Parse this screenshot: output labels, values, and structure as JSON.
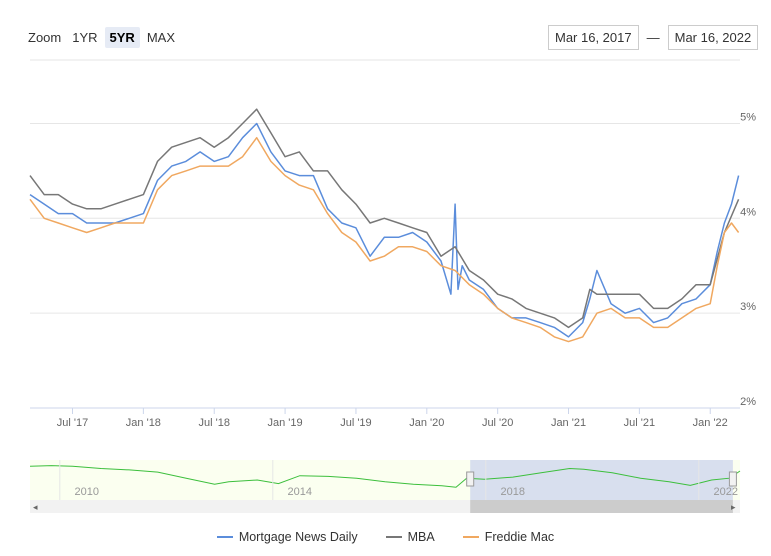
{
  "toolbar": {
    "zoom_label": "Zoom",
    "zoom_buttons": [
      "1YR",
      "5YR",
      "MAX"
    ],
    "active": "5YR",
    "range_from": "Mar 16, 2017",
    "range_sep": "—",
    "range_to": "Mar 16, 2022"
  },
  "colors": {
    "mortgage_news_daily": "#5b8ddb",
    "mba": "#777777",
    "freddie_mac": "#f0a860",
    "navigator_line": "#3cbf3c"
  },
  "navigator": {
    "labels": [
      "2010",
      "2014",
      "2018",
      "2022"
    ],
    "selection_from": 0.62,
    "selection_to": 0.99
  },
  "chart_data": {
    "type": "line",
    "title": "",
    "xlim": [
      2017.2,
      2022.21
    ],
    "ylim": [
      2,
      5.3
    ],
    "x_ticks": [
      {
        "x": 2017.5,
        "label": "Jul '17"
      },
      {
        "x": 2018.0,
        "label": "Jan '18"
      },
      {
        "x": 2018.5,
        "label": "Jul '18"
      },
      {
        "x": 2019.0,
        "label": "Jan '19"
      },
      {
        "x": 2019.5,
        "label": "Jul '19"
      },
      {
        "x": 2020.0,
        "label": "Jan '20"
      },
      {
        "x": 2020.5,
        "label": "Jul '20"
      },
      {
        "x": 2021.0,
        "label": "Jan '21"
      },
      {
        "x": 2021.5,
        "label": "Jul '21"
      },
      {
        "x": 2022.0,
        "label": "Jan '22"
      }
    ],
    "y_ticks": [
      {
        "y": 2,
        "label": "2%"
      },
      {
        "y": 3,
        "label": "3%"
      },
      {
        "y": 4,
        "label": "4%"
      },
      {
        "y": 5,
        "label": "5%"
      }
    ],
    "series": [
      {
        "name": "Mortgage News Daily",
        "x": [
          2017.2,
          2017.3,
          2017.4,
          2017.5,
          2017.6,
          2017.7,
          2017.8,
          2017.9,
          2018.0,
          2018.1,
          2018.2,
          2018.3,
          2018.4,
          2018.5,
          2018.6,
          2018.7,
          2018.8,
          2018.9,
          2019.0,
          2019.1,
          2019.2,
          2019.3,
          2019.4,
          2019.5,
          2019.6,
          2019.7,
          2019.8,
          2019.9,
          2020.0,
          2020.1,
          2020.17,
          2020.2,
          2020.22,
          2020.25,
          2020.3,
          2020.4,
          2020.5,
          2020.6,
          2020.7,
          2020.8,
          2020.9,
          2021.0,
          2021.1,
          2021.15,
          2021.2,
          2021.3,
          2021.4,
          2021.5,
          2021.6,
          2021.7,
          2021.8,
          2021.9,
          2022.0,
          2022.05,
          2022.1,
          2022.15,
          2022.2
        ],
        "y": [
          4.25,
          4.15,
          4.05,
          4.05,
          3.95,
          3.95,
          3.95,
          4.0,
          4.05,
          4.4,
          4.55,
          4.6,
          4.7,
          4.6,
          4.65,
          4.85,
          5.0,
          4.7,
          4.5,
          4.45,
          4.45,
          4.1,
          3.95,
          3.9,
          3.6,
          3.8,
          3.8,
          3.85,
          3.75,
          3.55,
          3.2,
          4.15,
          3.25,
          3.5,
          3.35,
          3.25,
          3.05,
          2.95,
          2.95,
          2.9,
          2.85,
          2.75,
          2.9,
          3.15,
          3.45,
          3.1,
          3.0,
          3.05,
          2.9,
          2.95,
          3.1,
          3.15,
          3.3,
          3.65,
          3.95,
          4.15,
          4.45
        ]
      },
      {
        "name": "MBA",
        "x": [
          2017.2,
          2017.3,
          2017.4,
          2017.5,
          2017.6,
          2017.7,
          2017.8,
          2017.9,
          2018.0,
          2018.1,
          2018.2,
          2018.3,
          2018.4,
          2018.5,
          2018.6,
          2018.7,
          2018.8,
          2018.9,
          2019.0,
          2019.1,
          2019.2,
          2019.3,
          2019.4,
          2019.5,
          2019.6,
          2019.7,
          2019.8,
          2019.9,
          2020.0,
          2020.1,
          2020.2,
          2020.3,
          2020.4,
          2020.5,
          2020.6,
          2020.7,
          2020.8,
          2020.9,
          2021.0,
          2021.1,
          2021.15,
          2021.2,
          2021.3,
          2021.4,
          2021.5,
          2021.6,
          2021.7,
          2021.8,
          2021.9,
          2022.0,
          2022.1,
          2022.2
        ],
        "y": [
          4.45,
          4.25,
          4.25,
          4.15,
          4.1,
          4.1,
          4.15,
          4.2,
          4.25,
          4.6,
          4.75,
          4.8,
          4.85,
          4.75,
          4.85,
          5.0,
          5.15,
          4.9,
          4.65,
          4.7,
          4.5,
          4.5,
          4.3,
          4.15,
          3.95,
          4.0,
          3.95,
          3.9,
          3.85,
          3.6,
          3.7,
          3.45,
          3.35,
          3.2,
          3.15,
          3.05,
          3.0,
          2.95,
          2.85,
          2.95,
          3.25,
          3.2,
          3.2,
          3.2,
          3.2,
          3.05,
          3.05,
          3.15,
          3.3,
          3.3,
          3.85,
          4.2
        ]
      },
      {
        "name": "Freddie Mac",
        "x": [
          2017.2,
          2017.3,
          2017.4,
          2017.5,
          2017.6,
          2017.7,
          2017.8,
          2017.9,
          2018.0,
          2018.1,
          2018.2,
          2018.3,
          2018.4,
          2018.5,
          2018.6,
          2018.7,
          2018.8,
          2018.9,
          2019.0,
          2019.1,
          2019.2,
          2019.3,
          2019.4,
          2019.5,
          2019.6,
          2019.7,
          2019.8,
          2019.9,
          2020.0,
          2020.1,
          2020.2,
          2020.3,
          2020.4,
          2020.5,
          2020.6,
          2020.7,
          2020.8,
          2020.9,
          2021.0,
          2021.1,
          2021.2,
          2021.3,
          2021.4,
          2021.5,
          2021.6,
          2021.7,
          2021.8,
          2021.9,
          2022.0,
          2022.05,
          2022.1,
          2022.15,
          2022.2
        ],
        "y": [
          4.2,
          4.0,
          3.95,
          3.9,
          3.85,
          3.9,
          3.95,
          3.95,
          3.95,
          4.3,
          4.45,
          4.5,
          4.55,
          4.55,
          4.55,
          4.65,
          4.85,
          4.6,
          4.45,
          4.35,
          4.3,
          4.05,
          3.85,
          3.75,
          3.55,
          3.6,
          3.7,
          3.7,
          3.65,
          3.5,
          3.45,
          3.3,
          3.2,
          3.05,
          2.95,
          2.9,
          2.85,
          2.75,
          2.7,
          2.75,
          3.0,
          3.05,
          2.95,
          2.95,
          2.85,
          2.85,
          2.95,
          3.05,
          3.1,
          3.5,
          3.85,
          3.95,
          3.85
        ]
      }
    ],
    "legend_position": "bottom-center",
    "grid": true
  }
}
